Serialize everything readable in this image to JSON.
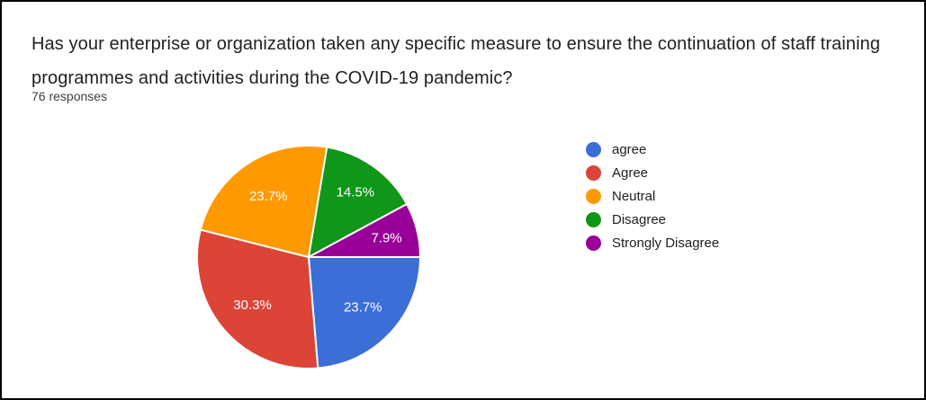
{
  "question": {
    "title": "Has your enterprise or organization taken any specific measure to ensure the continuation of staff training programmes and activities during the COVID-19 pandemic?",
    "responses": "76 responses"
  },
  "chart_data": {
    "type": "pie",
    "title": "Has your enterprise or organization taken any specific measure to ensure the continuation of staff training programmes and activities during the COVID-19 pandemic?",
    "subtitle": "76 responses",
    "categories": [
      "agree",
      "Agree",
      "Neutral",
      "Disagree",
      "Strongly Disagree"
    ],
    "values": [
      23.7,
      30.3,
      23.7,
      14.5,
      7.9
    ],
    "slice_labels": [
      "23.7%",
      "30.3%",
      "23.7%",
      "14.5%",
      "7.9%"
    ],
    "colors": [
      "#3b6ed6",
      "#db4437",
      "#ff9900",
      "#109618",
      "#990099"
    ],
    "legend_position": "right",
    "start_angle_deg": 0,
    "direction": "clockwise",
    "slice_label_color": "#ffffff",
    "slice_border_color": "#ffffff"
  }
}
